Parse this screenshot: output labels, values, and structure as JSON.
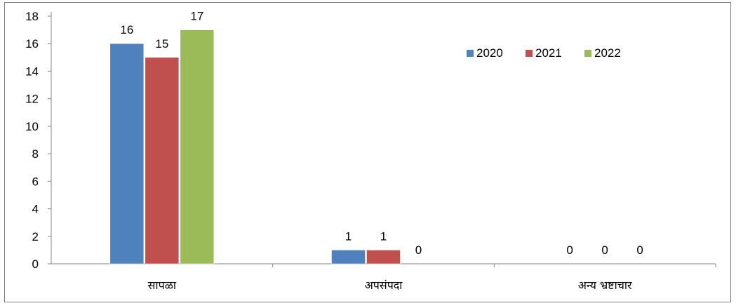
{
  "chart_data": {
    "type": "bar",
    "categories": [
      "सापळा",
      "अपसंपदा",
      "अन्य भ्रष्टाचार"
    ],
    "series": [
      {
        "name": "2020",
        "values": [
          16,
          1,
          0
        ],
        "color": "#4F81BD"
      },
      {
        "name": "2021",
        "values": [
          15,
          1,
          0
        ],
        "color": "#C0504D"
      },
      {
        "name": "2022",
        "values": [
          17,
          0,
          0
        ],
        "color": "#9BBB59"
      }
    ],
    "ylim": [
      0,
      18
    ],
    "yticks": [
      0,
      2,
      4,
      6,
      8,
      10,
      12,
      14,
      16,
      18
    ],
    "legend_position": "top-right",
    "grid": false,
    "data_labels": true
  }
}
